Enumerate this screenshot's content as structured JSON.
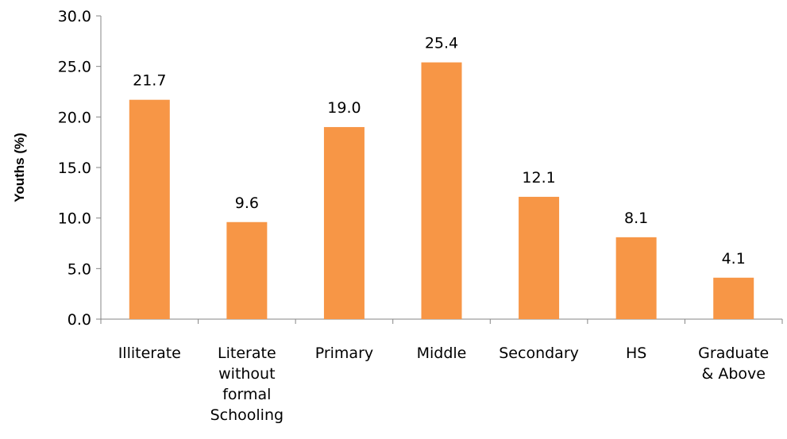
{
  "chart_data": {
    "type": "bar",
    "title": "",
    "xlabel": "",
    "ylabel": "Youths (%)",
    "ylim": [
      0,
      30
    ],
    "yticks": [
      "0.0",
      "5.0",
      "10.0",
      "15.0",
      "20.0",
      "25.0",
      "30.0"
    ],
    "grid": false,
    "legend": "none",
    "bar_color": "#F79646",
    "categories": [
      [
        "Illiterate"
      ],
      [
        "Literate",
        "without",
        "formal",
        "Schooling"
      ],
      [
        "Primary"
      ],
      [
        "Middle"
      ],
      [
        "Secondary"
      ],
      [
        "HS"
      ],
      [
        "Graduate",
        "& Above"
      ]
    ],
    "values": [
      21.7,
      9.6,
      19.0,
      25.4,
      12.1,
      8.1,
      4.1
    ],
    "data_labels": [
      "21.7",
      "9.6",
      "19.0",
      "25.4",
      "12.1",
      "8.1",
      "4.1"
    ]
  }
}
